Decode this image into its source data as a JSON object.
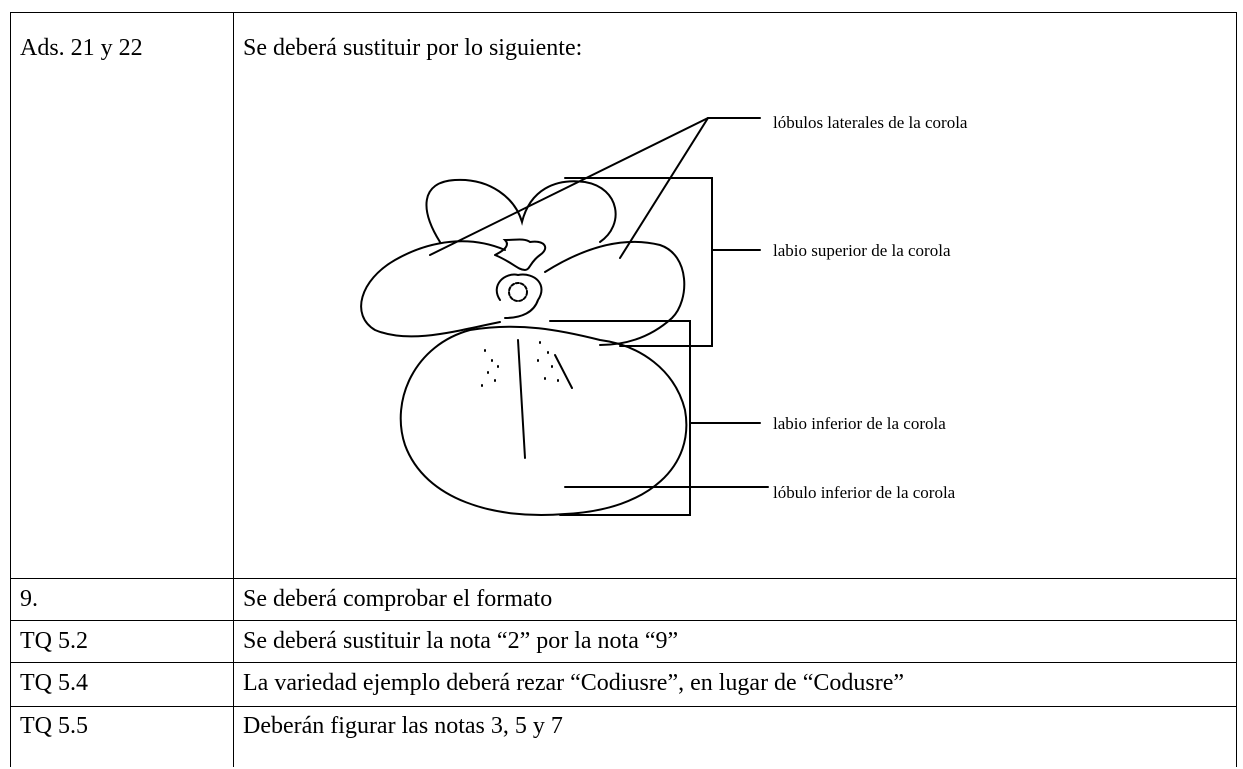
{
  "table": {
    "rows": [
      [
        "Ads. 21 y 22",
        "Se deberá sustituir por lo siguiente:"
      ],
      [
        "9.",
        "Se deberá comprobar el formato"
      ],
      [
        "TQ 5.2",
        "Se deberá sustituir la nota “2” por la nota “9”"
      ],
      [
        "TQ 5.4",
        "La variedad ejemplo deberá rezar “Codiusre”, en lugar de “Codusre”"
      ],
      [
        "TQ 5.5",
        "Deberán figurar las notas 3, 5 y 7"
      ]
    ]
  },
  "figure": {
    "labels": [
      "lóbulos laterales de la corola",
      "labio superior de la corola",
      "labio inferior de la corola",
      "lóbulo inferior de la corola"
    ]
  }
}
